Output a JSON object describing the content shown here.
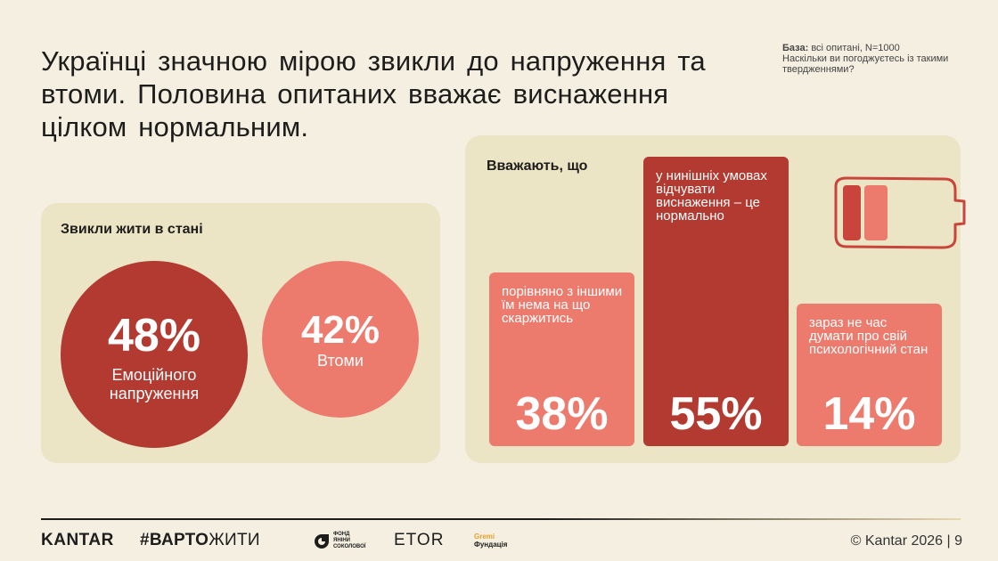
{
  "title_lines": [
    "Українці значною мірою звикли до напруження та",
    "втоми. Половина опитаних вважає виснаження",
    "цілком нормальним."
  ],
  "base": {
    "label": "База:",
    "text": "всі опитані, N=1000",
    "question": "Наскільки ви погоджуєтесь із такими твердженнями?"
  },
  "colors": {
    "background": "#f4efe1",
    "panel": "#ebe4c5",
    "dark_red": "#b23a30",
    "coral": "#ec7b6d"
  },
  "chart_data": [
    {
      "type": "bubble",
      "title": "Звикли жити в стані",
      "categories": [
        "Емоційного напруження",
        "Втоми"
      ],
      "values": [
        48,
        42
      ],
      "value_labels": [
        "48%",
        "42%"
      ],
      "unit": "%"
    },
    {
      "type": "bar",
      "title": "Вважають, що",
      "categories": [
        "порівняно з іншими  їм нема на що скаржитись",
        "у нинішніх умовах відчувати виснаження – це нормально",
        "зараз не час думати про свій психологічний стан"
      ],
      "values": [
        38,
        55,
        14
      ],
      "value_labels": [
        "38%",
        "55%",
        "14%"
      ],
      "unit": "%",
      "ylim": [
        0,
        55
      ]
    }
  ],
  "footer": {
    "kantar": "KANTAR",
    "varto_bold": "#ВАРТО",
    "varto_rest": "ЖИТИ",
    "fund_lines": [
      "ФОНД",
      "ЯНІНИ",
      "СОКОЛОВОЇ"
    ],
    "etor": "ETOR",
    "gremi_top": "Gremi",
    "gremi_bottom": "Фундація",
    "copyright": "© Kantar 2026 | 9"
  }
}
